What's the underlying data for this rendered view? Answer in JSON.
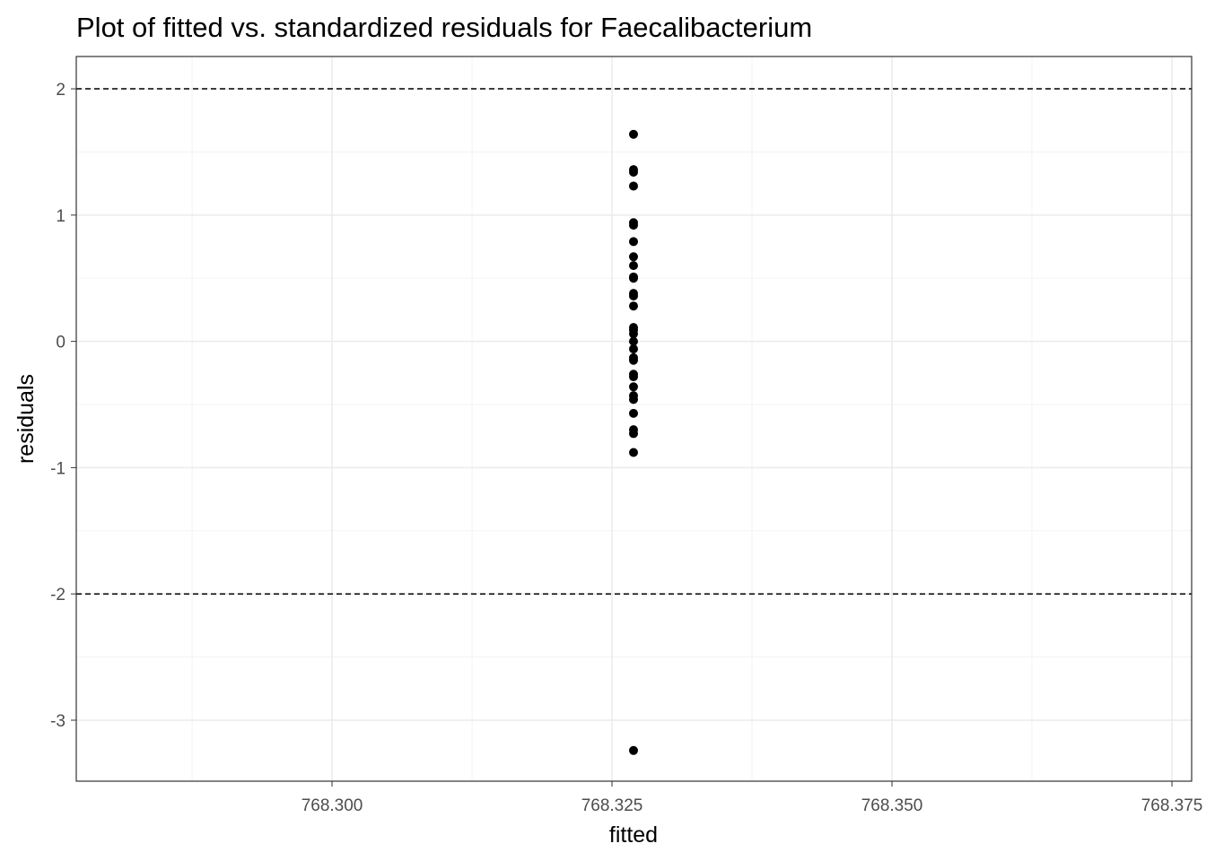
{
  "chart_data": {
    "type": "scatter",
    "title": "Plot of fitted vs. standardized residuals for Faecalibacterium",
    "x_label": "fitted",
    "y_label": "residuals",
    "x": [
      768.32692,
      768.32692,
      768.32692,
      768.32692,
      768.32692,
      768.32692,
      768.32692,
      768.32692,
      768.32692,
      768.32692,
      768.32692,
      768.32692,
      768.32692,
      768.32692,
      768.32692,
      768.32692,
      768.32692,
      768.32692,
      768.32692,
      768.32692,
      768.32692,
      768.32692,
      768.32692,
      768.32692,
      768.32692,
      768.32692,
      768.32692,
      768.32692,
      768.32692,
      768.32692,
      768.32692
    ],
    "y": [
      1.64,
      1.36,
      1.34,
      1.23,
      0.94,
      0.92,
      0.79,
      0.67,
      0.6,
      0.51,
      0.5,
      0.38,
      0.36,
      0.28,
      0.11,
      0.09,
      0.06,
      0.0,
      -0.06,
      -0.13,
      -0.15,
      -0.26,
      -0.28,
      -0.36,
      -0.43,
      -0.46,
      -0.57,
      -0.7,
      -0.73,
      -0.88,
      -3.24
    ],
    "color": "#000000",
    "xlim": [
      768.27716,
      768.37676
    ],
    "ylim": [
      -3.483,
      2.256
    ],
    "xticks": [
      {
        "value": 768.3,
        "label": "768.300"
      },
      {
        "value": 768.325,
        "label": "768.325"
      },
      {
        "value": 768.35,
        "label": "768.350"
      },
      {
        "value": 768.375,
        "label": "768.375"
      }
    ],
    "yticks": [
      -3,
      -2,
      -1,
      0,
      1,
      2
    ],
    "reference_lines": [
      2,
      -2
    ],
    "grid": true
  }
}
